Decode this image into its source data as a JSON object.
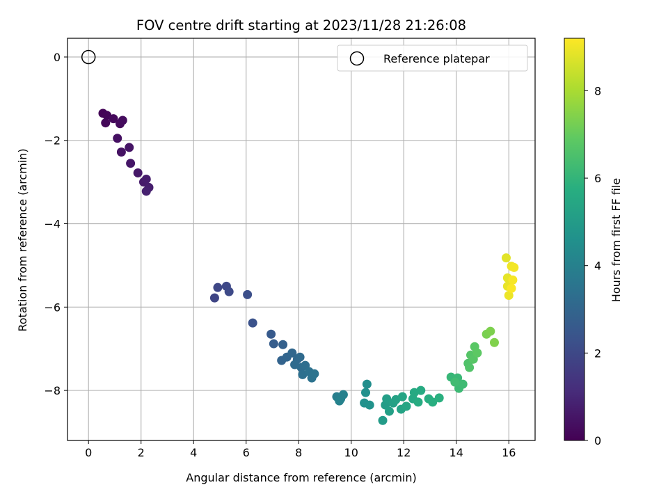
{
  "chart_data": {
    "type": "scatter",
    "title": "FOV centre drift starting at 2023/11/28 21:26:08",
    "xlabel": "Angular distance from reference (arcmin)",
    "ylabel": "Rotation from reference (arcmin)",
    "xlim": [
      -0.8,
      17.0
    ],
    "ylim": [
      -9.2,
      0.45
    ],
    "x_ticks": [
      0,
      2,
      4,
      6,
      8,
      10,
      12,
      14,
      16
    ],
    "y_ticks": [
      0,
      -2,
      -4,
      -6,
      -8
    ],
    "x_tick_labels": [
      "0",
      "2",
      "4",
      "6",
      "8",
      "10",
      "12",
      "14",
      "16"
    ],
    "y_tick_labels": [
      "0",
      "−2",
      "−4",
      "−6",
      "−8"
    ],
    "grid": true,
    "legend": {
      "position": "top-right",
      "entries": [
        "Reference platepar"
      ]
    },
    "reference_point": {
      "name": "Reference platepar",
      "x": 0,
      "y": 0
    },
    "colorbar": {
      "label": "Hours from first FF file",
      "colormap": "viridis",
      "range": [
        0,
        9.2
      ],
      "ticks": [
        0,
        2,
        4,
        6,
        8
      ],
      "tick_labels": [
        "0",
        "2",
        "4",
        "6",
        "8"
      ]
    },
    "points": [
      {
        "x": 0.55,
        "y": -1.35,
        "c": 0.05
      },
      {
        "x": 0.7,
        "y": -1.4,
        "c": 0.1
      },
      {
        "x": 0.65,
        "y": -1.58,
        "c": 0.15
      },
      {
        "x": 0.95,
        "y": -1.48,
        "c": 0.2
      },
      {
        "x": 1.2,
        "y": -1.6,
        "c": 0.25
      },
      {
        "x": 1.3,
        "y": -1.52,
        "c": 0.3
      },
      {
        "x": 1.1,
        "y": -1.95,
        "c": 0.4
      },
      {
        "x": 1.25,
        "y": -2.28,
        "c": 0.45
      },
      {
        "x": 1.55,
        "y": -2.17,
        "c": 0.5
      },
      {
        "x": 1.6,
        "y": -2.55,
        "c": 0.55
      },
      {
        "x": 1.88,
        "y": -2.78,
        "c": 0.6
      },
      {
        "x": 2.1,
        "y": -3.0,
        "c": 0.65
      },
      {
        "x": 2.2,
        "y": -2.93,
        "c": 0.7
      },
      {
        "x": 2.3,
        "y": -3.13,
        "c": 0.75
      },
      {
        "x": 2.2,
        "y": -3.22,
        "c": 0.8
      },
      {
        "x": 4.8,
        "y": -5.78,
        "c": 1.9
      },
      {
        "x": 4.92,
        "y": -5.53,
        "c": 1.95
      },
      {
        "x": 5.25,
        "y": -5.5,
        "c": 2.0
      },
      {
        "x": 5.35,
        "y": -5.63,
        "c": 2.05
      },
      {
        "x": 6.05,
        "y": -5.7,
        "c": 2.2
      },
      {
        "x": 6.25,
        "y": -6.38,
        "c": 2.3
      },
      {
        "x": 6.95,
        "y": -6.65,
        "c": 2.6
      },
      {
        "x": 7.05,
        "y": -6.88,
        "c": 2.7
      },
      {
        "x": 7.4,
        "y": -6.9,
        "c": 2.8
      },
      {
        "x": 7.35,
        "y": -7.28,
        "c": 2.9
      },
      {
        "x": 7.55,
        "y": -7.2,
        "c": 3.0
      },
      {
        "x": 7.75,
        "y": -7.1,
        "c": 3.05
      },
      {
        "x": 7.95,
        "y": -7.25,
        "c": 3.1
      },
      {
        "x": 8.05,
        "y": -7.2,
        "c": 3.15
      },
      {
        "x": 7.85,
        "y": -7.38,
        "c": 3.2
      },
      {
        "x": 8.1,
        "y": -7.45,
        "c": 3.25
      },
      {
        "x": 8.25,
        "y": -7.4,
        "c": 3.3
      },
      {
        "x": 8.15,
        "y": -7.62,
        "c": 3.35
      },
      {
        "x": 8.4,
        "y": -7.55,
        "c": 3.4
      },
      {
        "x": 8.5,
        "y": -7.7,
        "c": 3.45
      },
      {
        "x": 8.6,
        "y": -7.6,
        "c": 3.5
      },
      {
        "x": 9.45,
        "y": -8.15,
        "c": 3.9
      },
      {
        "x": 9.6,
        "y": -8.2,
        "c": 3.95
      },
      {
        "x": 9.7,
        "y": -8.1,
        "c": 4.0
      },
      {
        "x": 9.55,
        "y": -8.25,
        "c": 4.05
      },
      {
        "x": 10.6,
        "y": -7.85,
        "c": 4.5
      },
      {
        "x": 10.55,
        "y": -8.05,
        "c": 4.55
      },
      {
        "x": 10.5,
        "y": -8.3,
        "c": 4.6
      },
      {
        "x": 10.7,
        "y": -8.35,
        "c": 4.65
      },
      {
        "x": 11.2,
        "y": -8.72,
        "c": 5.0
      },
      {
        "x": 11.3,
        "y": -8.35,
        "c": 5.05
      },
      {
        "x": 11.35,
        "y": -8.2,
        "c": 5.1
      },
      {
        "x": 11.45,
        "y": -8.5,
        "c": 5.15
      },
      {
        "x": 11.6,
        "y": -8.3,
        "c": 5.2
      },
      {
        "x": 11.7,
        "y": -8.22,
        "c": 5.25
      },
      {
        "x": 11.9,
        "y": -8.45,
        "c": 5.3
      },
      {
        "x": 11.95,
        "y": -8.15,
        "c": 5.35
      },
      {
        "x": 12.1,
        "y": -8.38,
        "c": 5.4
      },
      {
        "x": 12.35,
        "y": -8.2,
        "c": 5.5
      },
      {
        "x": 12.4,
        "y": -8.05,
        "c": 5.55
      },
      {
        "x": 12.65,
        "y": -8.0,
        "c": 5.6
      },
      {
        "x": 12.55,
        "y": -8.28,
        "c": 5.65
      },
      {
        "x": 12.95,
        "y": -8.2,
        "c": 5.7
      },
      {
        "x": 13.1,
        "y": -8.28,
        "c": 5.75
      },
      {
        "x": 13.35,
        "y": -8.18,
        "c": 5.8
      },
      {
        "x": 13.8,
        "y": -7.68,
        "c": 6.1
      },
      {
        "x": 14.05,
        "y": -7.7,
        "c": 6.15
      },
      {
        "x": 14.1,
        "y": -7.95,
        "c": 6.2
      },
      {
        "x": 14.25,
        "y": -7.85,
        "c": 6.25
      },
      {
        "x": 13.95,
        "y": -7.8,
        "c": 6.3
      },
      {
        "x": 14.45,
        "y": -7.35,
        "c": 6.6
      },
      {
        "x": 14.5,
        "y": -7.45,
        "c": 6.65
      },
      {
        "x": 14.55,
        "y": -7.15,
        "c": 6.7
      },
      {
        "x": 14.65,
        "y": -7.25,
        "c": 6.75
      },
      {
        "x": 14.7,
        "y": -6.95,
        "c": 6.8
      },
      {
        "x": 14.8,
        "y": -7.1,
        "c": 6.85
      },
      {
        "x": 15.15,
        "y": -6.65,
        "c": 7.3
      },
      {
        "x": 15.3,
        "y": -6.58,
        "c": 7.35
      },
      {
        "x": 15.45,
        "y": -6.85,
        "c": 7.4
      },
      {
        "x": 15.9,
        "y": -4.82,
        "c": 8.8
      },
      {
        "x": 15.95,
        "y": -5.3,
        "c": 8.85
      },
      {
        "x": 15.95,
        "y": -5.5,
        "c": 8.9
      },
      {
        "x": 16.0,
        "y": -5.72,
        "c": 8.95
      },
      {
        "x": 16.1,
        "y": -5.02,
        "c": 9.0
      },
      {
        "x": 16.2,
        "y": -5.05,
        "c": 9.05
      },
      {
        "x": 16.15,
        "y": -5.35,
        "c": 9.1
      },
      {
        "x": 16.1,
        "y": -5.55,
        "c": 9.15
      }
    ]
  }
}
